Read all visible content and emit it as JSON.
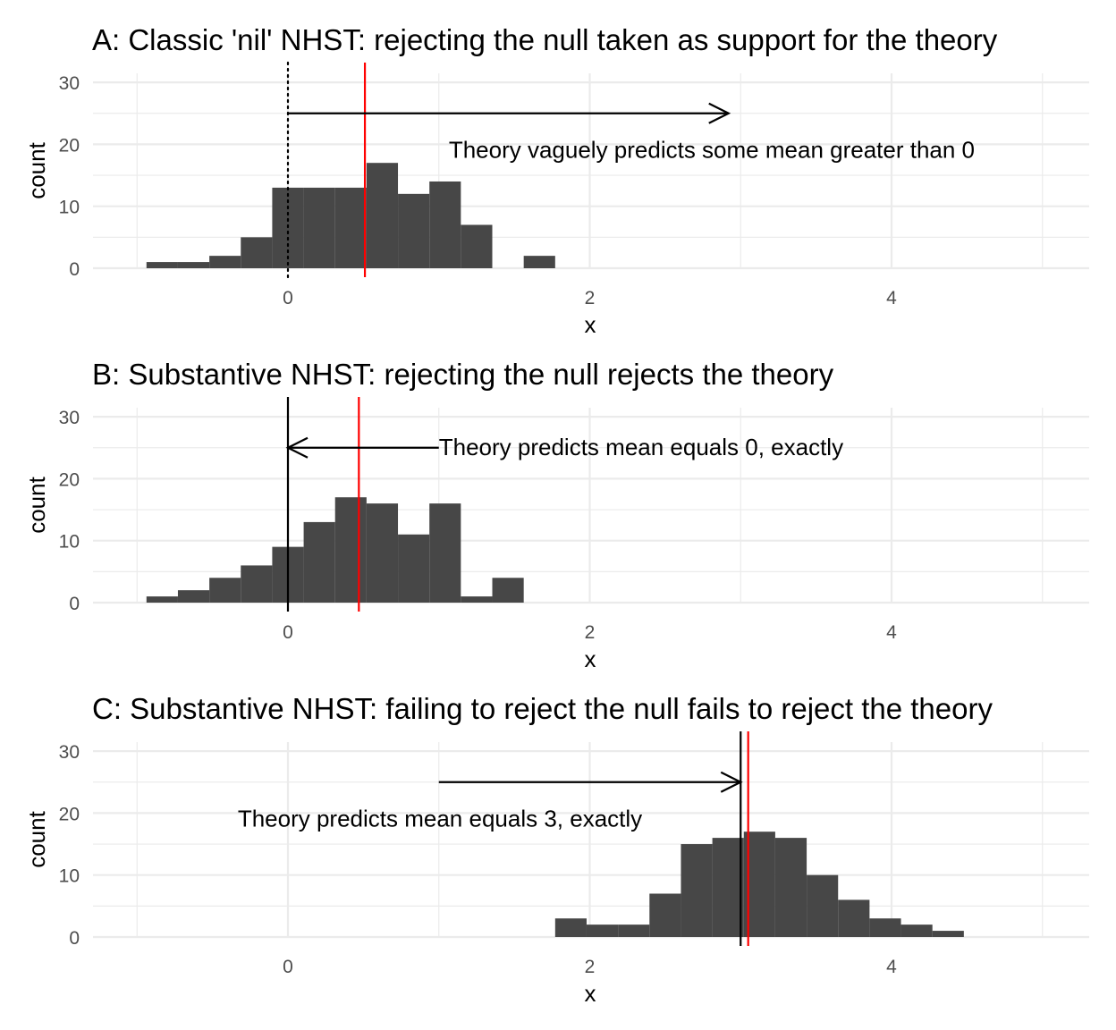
{
  "chart_data": [
    {
      "type": "histogram",
      "title": "A: Classic 'nil' NHST: rejecting the null taken as support for the theory",
      "xlabel": "x",
      "ylabel": "count",
      "xlim": [
        -1,
        5.15
      ],
      "ylim": [
        0,
        30
      ],
      "x_ticks": [
        "0",
        "2",
        "4"
      ],
      "y_ticks": [
        "0",
        "10",
        "20",
        "30"
      ],
      "bin_width": 0.2083,
      "bars": [
        {
          "x0": -0.9375,
          "count": 1
        },
        {
          "x0": -0.7292,
          "count": 1
        },
        {
          "x0": -0.5208,
          "count": 2
        },
        {
          "x0": -0.3125,
          "count": 5
        },
        {
          "x0": -0.1042,
          "count": 13
        },
        {
          "x0": 0.1042,
          "count": 13
        },
        {
          "x0": 0.3125,
          "count": 13
        },
        {
          "x0": 0.5208,
          "count": 17
        },
        {
          "x0": 0.7292,
          "count": 12
        },
        {
          "x0": 0.9375,
          "count": 14
        },
        {
          "x0": 1.1458,
          "count": 7
        },
        {
          "x0": 1.5625,
          "count": 2
        }
      ],
      "sample_mean": 0.51,
      "null_value": 0,
      "null_line_style": "dotted",
      "arrow": {
        "from": 0,
        "to": 2.92,
        "y": 25
      },
      "annotation": {
        "text": "Theory vaguely predicts some mean greater than 0",
        "x": 1.03,
        "y": 19
      }
    },
    {
      "type": "histogram",
      "title": "B: Substantive NHST: rejecting the null rejects the theory",
      "xlabel": "x",
      "ylabel": "count",
      "xlim": [
        -1,
        5.15
      ],
      "ylim": [
        0,
        30
      ],
      "x_ticks": [
        "0",
        "2",
        "4"
      ],
      "y_ticks": [
        "0",
        "10",
        "20",
        "30"
      ],
      "bin_width": 0.2083,
      "bars": [
        {
          "x0": -0.9375,
          "count": 1
        },
        {
          "x0": -0.7292,
          "count": 2
        },
        {
          "x0": -0.5208,
          "count": 4
        },
        {
          "x0": -0.3125,
          "count": 6
        },
        {
          "x0": -0.1042,
          "count": 9
        },
        {
          "x0": 0.1042,
          "count": 13
        },
        {
          "x0": 0.3125,
          "count": 17
        },
        {
          "x0": 0.5208,
          "count": 16
        },
        {
          "x0": 0.7292,
          "count": 11
        },
        {
          "x0": 0.9375,
          "count": 16
        },
        {
          "x0": 1.1458,
          "count": 1
        },
        {
          "x0": 1.3542,
          "count": 4
        }
      ],
      "sample_mean": 0.47,
      "null_value": 0,
      "null_line_style": "solid",
      "arrow": {
        "from": 1.0,
        "to": 0,
        "y": 25
      },
      "annotation": {
        "text": "Theory predicts mean equals 0, exactly",
        "x": 1.0,
        "y": 25
      }
    },
    {
      "type": "histogram",
      "title": "C: Substantive NHST: failing to reject the null fails to reject the theory",
      "xlabel": "x",
      "ylabel": "count",
      "xlim": [
        -1,
        5.15
      ],
      "ylim": [
        0,
        30
      ],
      "x_ticks": [
        "0",
        "2",
        "4"
      ],
      "y_ticks": [
        "0",
        "10",
        "20",
        "30"
      ],
      "bin_width": 0.2083,
      "bars": [
        {
          "x0": 1.7708,
          "count": 3
        },
        {
          "x0": 1.9792,
          "count": 2
        },
        {
          "x0": 2.1875,
          "count": 2
        },
        {
          "x0": 2.3958,
          "count": 7
        },
        {
          "x0": 2.6042,
          "count": 15
        },
        {
          "x0": 2.8125,
          "count": 16
        },
        {
          "x0": 3.0208,
          "count": 17
        },
        {
          "x0": 3.2292,
          "count": 16
        },
        {
          "x0": 3.4375,
          "count": 10
        },
        {
          "x0": 3.6458,
          "count": 6
        },
        {
          "x0": 3.8542,
          "count": 3
        },
        {
          "x0": 4.0625,
          "count": 2
        },
        {
          "x0": 4.2708,
          "count": 1
        }
      ],
      "sample_mean": 3.05,
      "null_value": 3,
      "null_line_style": "solid",
      "arrow": {
        "from": 1.0,
        "to": 3,
        "y": 25
      },
      "annotation": {
        "text": "Theory predicts mean equals 3, exactly",
        "x": 1.0,
        "y": 19
      }
    }
  ],
  "colors": {
    "bar": "#474747",
    "mean_line": "#ff0000",
    "null_line": "#000000",
    "grid": "#ebebeb",
    "text": "#000000",
    "tick_text": "#4d4d4d"
  }
}
